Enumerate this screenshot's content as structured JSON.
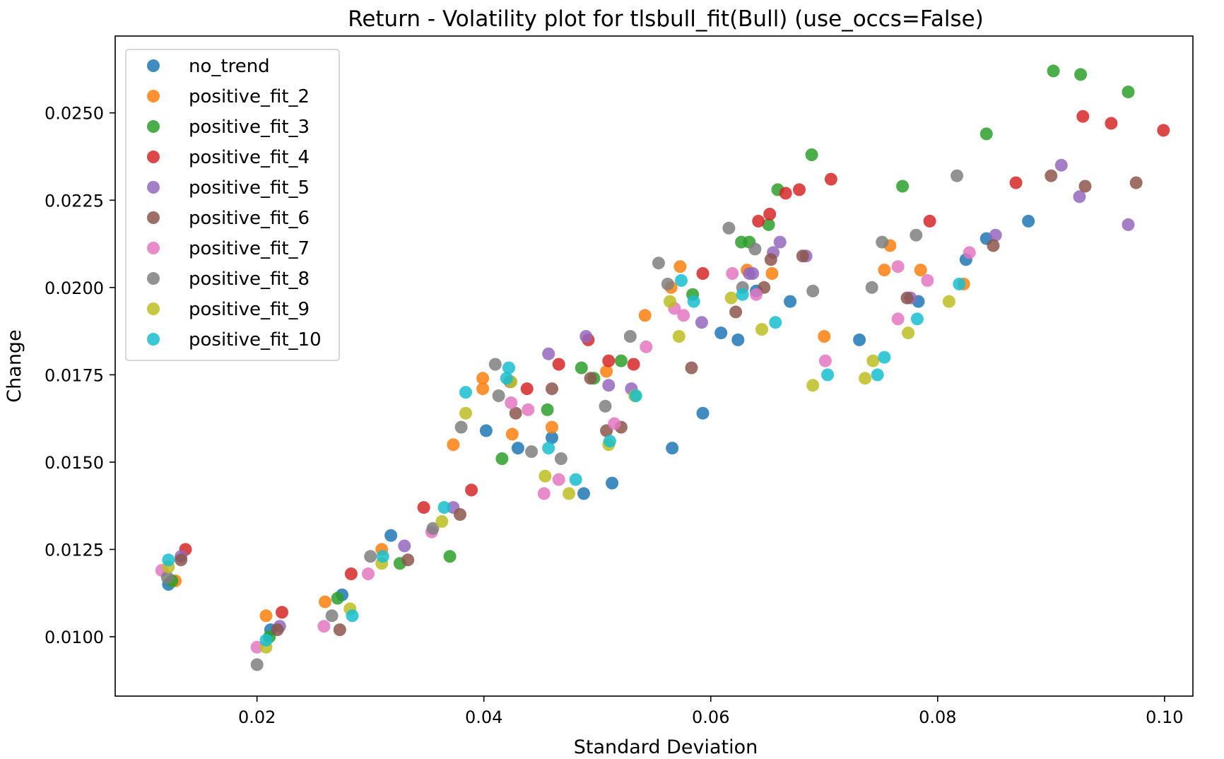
{
  "chart_data": {
    "type": "scatter",
    "title": "Return - Volatility plot for tlsbull_fit(Bull) (use_occs=False)",
    "xlabel": "Standard Deviation",
    "ylabel": "Change",
    "xlim": [
      0.0075,
      0.1025
    ],
    "ylim": [
      0.0083,
      0.0272
    ],
    "xticks": [
      0.02,
      0.04,
      0.06,
      0.08,
      0.1
    ],
    "xtick_labels": [
      "0.02",
      "0.04",
      "0.06",
      "0.08",
      "0.10"
    ],
    "yticks": [
      0.01,
      0.0125,
      0.015,
      0.0175,
      0.02,
      0.0225,
      0.025
    ],
    "ytick_labels": [
      "0.0100",
      "0.0125",
      "0.0150",
      "0.0175",
      "0.0200",
      "0.0225",
      "0.0250"
    ],
    "grid": false,
    "legend_position": "top-left",
    "series": [
      {
        "name": "no_trend",
        "color": "#1f77b4",
        "points": [
          [
            0.0122,
            0.0115
          ],
          [
            0.0212,
            0.0102
          ],
          [
            0.0275,
            0.0112
          ],
          [
            0.0318,
            0.0129
          ],
          [
            0.0402,
            0.0159
          ],
          [
            0.043,
            0.0154
          ],
          [
            0.046,
            0.0157
          ],
          [
            0.0488,
            0.0141
          ],
          [
            0.0513,
            0.0144
          ],
          [
            0.0566,
            0.0154
          ],
          [
            0.0593,
            0.0164
          ],
          [
            0.0609,
            0.0187
          ],
          [
            0.0624,
            0.0185
          ],
          [
            0.064,
            0.0199
          ],
          [
            0.067,
            0.0196
          ],
          [
            0.0731,
            0.0185
          ],
          [
            0.0783,
            0.0196
          ],
          [
            0.0825,
            0.0208
          ],
          [
            0.0843,
            0.0214
          ],
          [
            0.088,
            0.0219
          ]
        ]
      },
      {
        "name": "positive_fit_2",
        "color": "#ff7f0e",
        "points": [
          [
            0.0128,
            0.0116
          ],
          [
            0.0208,
            0.0106
          ],
          [
            0.026,
            0.011
          ],
          [
            0.031,
            0.0125
          ],
          [
            0.0373,
            0.0155
          ],
          [
            0.0399,
            0.0171
          ],
          [
            0.0399,
            0.0174
          ],
          [
            0.0425,
            0.0158
          ],
          [
            0.046,
            0.016
          ],
          [
            0.0508,
            0.0176
          ],
          [
            0.0542,
            0.0192
          ],
          [
            0.0565,
            0.02
          ],
          [
            0.0573,
            0.0206
          ],
          [
            0.0632,
            0.0205
          ],
          [
            0.0654,
            0.0204
          ],
          [
            0.07,
            0.0186
          ],
          [
            0.0753,
            0.0205
          ],
          [
            0.0758,
            0.0212
          ],
          [
            0.0785,
            0.0205
          ],
          [
            0.0823,
            0.0201
          ]
        ]
      },
      {
        "name": "positive_fit_3",
        "color": "#2ca02c",
        "points": [
          [
            0.0125,
            0.0116
          ],
          [
            0.0211,
            0.01
          ],
          [
            0.0271,
            0.0111
          ],
          [
            0.0326,
            0.0121
          ],
          [
            0.037,
            0.0123
          ],
          [
            0.0416,
            0.0151
          ],
          [
            0.0456,
            0.0165
          ],
          [
            0.0486,
            0.0177
          ],
          [
            0.0497,
            0.0174
          ],
          [
            0.0521,
            0.0179
          ],
          [
            0.0584,
            0.0198
          ],
          [
            0.0627,
            0.0213
          ],
          [
            0.0634,
            0.0213
          ],
          [
            0.0651,
            0.0218
          ],
          [
            0.0659,
            0.0228
          ],
          [
            0.0689,
            0.0238
          ],
          [
            0.0769,
            0.0229
          ],
          [
            0.0843,
            0.0244
          ],
          [
            0.0902,
            0.0262
          ],
          [
            0.0926,
            0.0261
          ],
          [
            0.0968,
            0.0256
          ]
        ]
      },
      {
        "name": "positive_fit_4",
        "color": "#d62728",
        "points": [
          [
            0.0137,
            0.0125
          ],
          [
            0.0222,
            0.0107
          ],
          [
            0.0283,
            0.0118
          ],
          [
            0.0347,
            0.0137
          ],
          [
            0.0389,
            0.0142
          ],
          [
            0.0438,
            0.0171
          ],
          [
            0.0466,
            0.0178
          ],
          [
            0.0492,
            0.0185
          ],
          [
            0.051,
            0.0179
          ],
          [
            0.0532,
            0.0178
          ],
          [
            0.0593,
            0.0204
          ],
          [
            0.0642,
            0.0219
          ],
          [
            0.0652,
            0.0221
          ],
          [
            0.0666,
            0.0227
          ],
          [
            0.0678,
            0.0228
          ],
          [
            0.0706,
            0.0231
          ],
          [
            0.0793,
            0.0219
          ],
          [
            0.0869,
            0.023
          ],
          [
            0.0928,
            0.0249
          ],
          [
            0.0953,
            0.0247
          ],
          [
            0.0999,
            0.0245
          ]
        ]
      },
      {
        "name": "positive_fit_5",
        "color": "#9467bd",
        "points": [
          [
            0.0133,
            0.0123
          ],
          [
            0.022,
            0.0103
          ],
          [
            0.033,
            0.0126
          ],
          [
            0.0373,
            0.0137
          ],
          [
            0.0423,
            0.0173
          ],
          [
            0.0457,
            0.0181
          ],
          [
            0.049,
            0.0186
          ],
          [
            0.051,
            0.0172
          ],
          [
            0.053,
            0.0171
          ],
          [
            0.0592,
            0.019
          ],
          [
            0.0634,
            0.0204
          ],
          [
            0.0637,
            0.0204
          ],
          [
            0.0655,
            0.021
          ],
          [
            0.0661,
            0.0213
          ],
          [
            0.0684,
            0.0209
          ],
          [
            0.0776,
            0.0197
          ],
          [
            0.0851,
            0.0215
          ],
          [
            0.0909,
            0.0235
          ],
          [
            0.0925,
            0.0226
          ],
          [
            0.0968,
            0.0218
          ]
        ]
      },
      {
        "name": "positive_fit_6",
        "color": "#8c564b",
        "points": [
          [
            0.0133,
            0.0122
          ],
          [
            0.0218,
            0.0102
          ],
          [
            0.0273,
            0.0102
          ],
          [
            0.0333,
            0.0122
          ],
          [
            0.0379,
            0.0135
          ],
          [
            0.0428,
            0.0164
          ],
          [
            0.046,
            0.0171
          ],
          [
            0.0494,
            0.0174
          ],
          [
            0.0508,
            0.0159
          ],
          [
            0.0521,
            0.016
          ],
          [
            0.0583,
            0.0177
          ],
          [
            0.0622,
            0.0193
          ],
          [
            0.0647,
            0.02
          ],
          [
            0.0653,
            0.0208
          ],
          [
            0.0681,
            0.0209
          ],
          [
            0.0773,
            0.0197
          ],
          [
            0.0849,
            0.0212
          ],
          [
            0.09,
            0.0232
          ],
          [
            0.093,
            0.0229
          ],
          [
            0.0975,
            0.023
          ]
        ]
      },
      {
        "name": "positive_fit_7",
        "color": "#e377c2",
        "points": [
          [
            0.0116,
            0.0119
          ],
          [
            0.02,
            0.0097
          ],
          [
            0.0259,
            0.0103
          ],
          [
            0.0298,
            0.0118
          ],
          [
            0.0354,
            0.013
          ],
          [
            0.0424,
            0.0167
          ],
          [
            0.0439,
            0.0165
          ],
          [
            0.0453,
            0.0141
          ],
          [
            0.0466,
            0.0145
          ],
          [
            0.0515,
            0.0161
          ],
          [
            0.0543,
            0.0183
          ],
          [
            0.0568,
            0.0194
          ],
          [
            0.0576,
            0.0192
          ],
          [
            0.0619,
            0.0204
          ],
          [
            0.064,
            0.0198
          ],
          [
            0.0701,
            0.0179
          ],
          [
            0.0765,
            0.0191
          ],
          [
            0.0765,
            0.0206
          ],
          [
            0.0791,
            0.0202
          ],
          [
            0.0828,
            0.021
          ]
        ]
      },
      {
        "name": "positive_fit_8",
        "color": "#7f7f7f",
        "points": [
          [
            0.0121,
            0.0117
          ],
          [
            0.02,
            0.0092
          ],
          [
            0.0266,
            0.0106
          ],
          [
            0.03,
            0.0123
          ],
          [
            0.0355,
            0.0131
          ],
          [
            0.038,
            0.016
          ],
          [
            0.041,
            0.0178
          ],
          [
            0.0413,
            0.0169
          ],
          [
            0.0442,
            0.0153
          ],
          [
            0.0468,
            0.0151
          ],
          [
            0.0507,
            0.0166
          ],
          [
            0.0529,
            0.0186
          ],
          [
            0.0554,
            0.0207
          ],
          [
            0.0562,
            0.0201
          ],
          [
            0.0616,
            0.0217
          ],
          [
            0.0628,
            0.02
          ],
          [
            0.0639,
            0.0211
          ],
          [
            0.069,
            0.0199
          ],
          [
            0.0742,
            0.02
          ],
          [
            0.0751,
            0.0213
          ],
          [
            0.0781,
            0.0215
          ],
          [
            0.0817,
            0.0232
          ]
        ]
      },
      {
        "name": "positive_fit_9",
        "color": "#bcbd22",
        "points": [
          [
            0.0122,
            0.012
          ],
          [
            0.0208,
            0.0097
          ],
          [
            0.0282,
            0.0108
          ],
          [
            0.031,
            0.0121
          ],
          [
            0.0363,
            0.0133
          ],
          [
            0.0384,
            0.0164
          ],
          [
            0.0424,
            0.0173
          ],
          [
            0.0454,
            0.0146
          ],
          [
            0.0475,
            0.0141
          ],
          [
            0.051,
            0.0155
          ],
          [
            0.0533,
            0.0169
          ],
          [
            0.0564,
            0.0196
          ],
          [
            0.0572,
            0.0186
          ],
          [
            0.0618,
            0.0197
          ],
          [
            0.0645,
            0.0188
          ],
          [
            0.069,
            0.0172
          ],
          [
            0.0736,
            0.0174
          ],
          [
            0.0743,
            0.0179
          ],
          [
            0.0774,
            0.0187
          ],
          [
            0.081,
            0.0196
          ]
        ]
      },
      {
        "name": "positive_fit_10",
        "color": "#17becf",
        "points": [
          [
            0.0122,
            0.0122
          ],
          [
            0.0208,
            0.0099
          ],
          [
            0.0284,
            0.0106
          ],
          [
            0.0311,
            0.0123
          ],
          [
            0.0365,
            0.0137
          ],
          [
            0.0384,
            0.017
          ],
          [
            0.042,
            0.0174
          ],
          [
            0.0422,
            0.0177
          ],
          [
            0.0457,
            0.0154
          ],
          [
            0.0481,
            0.0145
          ],
          [
            0.0511,
            0.0156
          ],
          [
            0.0534,
            0.0169
          ],
          [
            0.0574,
            0.0202
          ],
          [
            0.0585,
            0.0196
          ],
          [
            0.0628,
            0.0198
          ],
          [
            0.0657,
            0.019
          ],
          [
            0.0703,
            0.0175
          ],
          [
            0.0747,
            0.0175
          ],
          [
            0.0753,
            0.018
          ],
          [
            0.0782,
            0.0191
          ],
          [
            0.0819,
            0.0201
          ]
        ]
      }
    ]
  }
}
